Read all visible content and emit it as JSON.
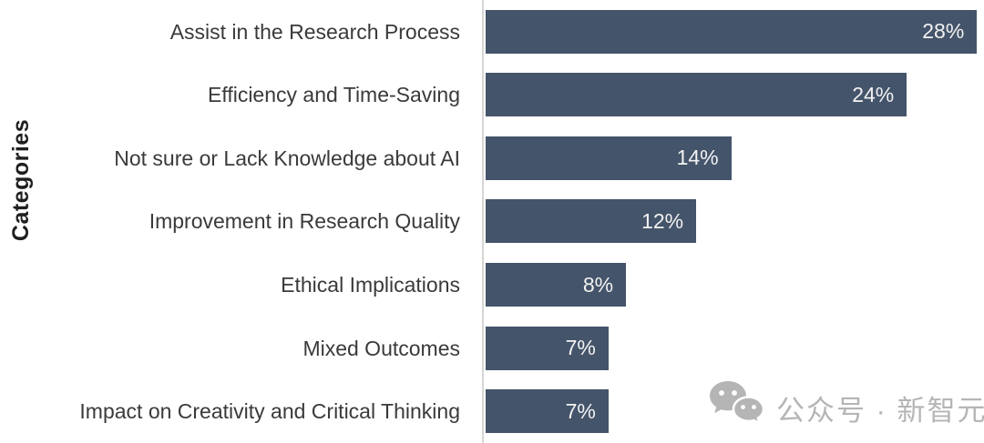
{
  "chart_data": {
    "type": "bar",
    "orientation": "horizontal",
    "title": "",
    "xlabel": "",
    "ylabel": "Categories",
    "categories": [
      "Assist in the Research Process",
      "Efficiency and Time-Saving",
      "Not sure or Lack Knowledge about AI",
      "Improvement in Research Quality",
      "Ethical Implications",
      "Mixed Outcomes",
      "Impact on Creativity and Critical Thinking"
    ],
    "values": [
      28,
      24,
      14,
      12,
      8,
      7,
      7
    ],
    "value_labels": [
      "28%",
      "24%",
      "14%",
      "12%",
      "8%",
      "7%",
      "7%"
    ],
    "value_label_position": "inside-end",
    "grid": false,
    "legend": "none",
    "xlim": [
      0,
      28.4
    ]
  },
  "colors": {
    "bar": "#44546A",
    "value_label": "#F2F2F2",
    "category_label": "#3A3A3A",
    "axis_line": "#D6D6D6",
    "watermark": "#B5B5B5"
  },
  "watermark": {
    "icon": "wechat-icon",
    "text": "公众号 · 新智元"
  }
}
